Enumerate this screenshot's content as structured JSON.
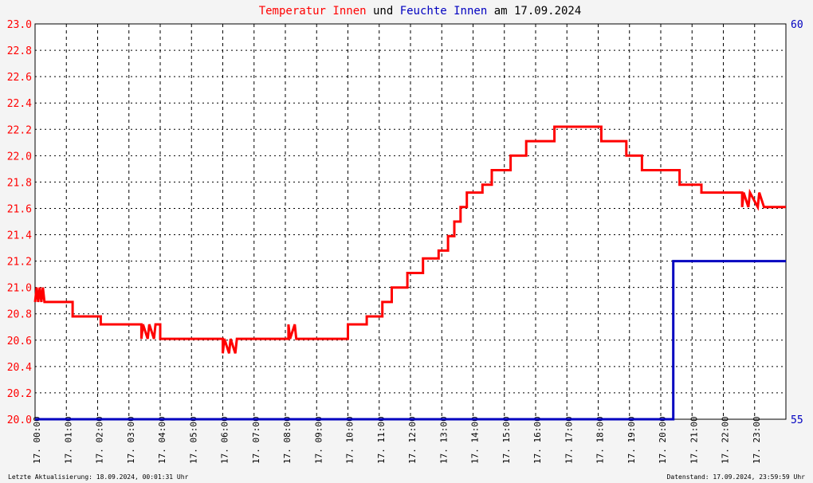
{
  "title": {
    "part1": "Temperatur Innen",
    "part2": " und ",
    "part3": "Feuchte Innen",
    "part4": " am 17.09.2024"
  },
  "footer": {
    "left": "Letzte Aktualisierung: 18.09.2024, 00:01:31 Uhr",
    "right": "Datenstand: 17.09.2024, 23:59:59 Uhr"
  },
  "colors": {
    "temperature": "#ff0000",
    "humidity": "#0000c0",
    "title_dark": "#000000"
  },
  "chart_data": {
    "type": "line",
    "xlabel": "",
    "x_ticks": [
      "17. 00:00",
      "17. 01:00",
      "17. 02:00",
      "17. 03:00",
      "17. 04:00",
      "17. 05:00",
      "17. 06:00",
      "17. 07:00",
      "17. 08:00",
      "17. 09:00",
      "17. 10:00",
      "17. 11:00",
      "17. 12:00",
      "17. 13:00",
      "17. 14:00",
      "17. 15:00",
      "17. 16:00",
      "17. 17:00",
      "17. 18:00",
      "17. 19:00",
      "17. 20:00",
      "17. 21:00",
      "17. 22:00",
      "17. 23:00"
    ],
    "xlim": [
      0,
      24
    ],
    "ylim_left": [
      20.0,
      23.0
    ],
    "y_ticks_left": [
      "20.0",
      "20.2",
      "20.4",
      "20.6",
      "20.8",
      "21.0",
      "21.2",
      "21.4",
      "21.6",
      "21.8",
      "22.0",
      "22.2",
      "22.4",
      "22.6",
      "22.8",
      "23.0"
    ],
    "ylim_right": [
      55,
      60
    ],
    "y_ticks_right": [
      "55",
      "60"
    ],
    "grid": true,
    "series": [
      {
        "name": "Temperatur Innen",
        "axis": "left",
        "points": [
          [
            0,
            20.89
          ],
          [
            0.05,
            21.0
          ],
          [
            0.1,
            20.89
          ],
          [
            0.15,
            21.0
          ],
          [
            0.2,
            20.89
          ],
          [
            0.25,
            21.0
          ],
          [
            0.3,
            20.89
          ],
          [
            1.2,
            20.89
          ],
          [
            1.2,
            20.78
          ],
          [
            2.1,
            20.78
          ],
          [
            2.1,
            20.72
          ],
          [
            3.4,
            20.72
          ],
          [
            3.4,
            20.61
          ],
          [
            3.45,
            20.72
          ],
          [
            3.6,
            20.61
          ],
          [
            3.65,
            20.72
          ],
          [
            3.8,
            20.61
          ],
          [
            3.85,
            20.72
          ],
          [
            4.0,
            20.72
          ],
          [
            4.0,
            20.61
          ],
          [
            6.0,
            20.61
          ],
          [
            6.0,
            20.5
          ],
          [
            6.05,
            20.61
          ],
          [
            6.2,
            20.5
          ],
          [
            6.25,
            20.61
          ],
          [
            6.4,
            20.5
          ],
          [
            6.45,
            20.61
          ],
          [
            8.1,
            20.61
          ],
          [
            8.1,
            20.72
          ],
          [
            8.15,
            20.61
          ],
          [
            8.3,
            20.72
          ],
          [
            8.35,
            20.61
          ],
          [
            10.0,
            20.61
          ],
          [
            10.0,
            20.72
          ],
          [
            10.6,
            20.72
          ],
          [
            10.6,
            20.78
          ],
          [
            11.1,
            20.78
          ],
          [
            11.1,
            20.89
          ],
          [
            11.4,
            20.89
          ],
          [
            11.4,
            21.0
          ],
          [
            11.9,
            21.0
          ],
          [
            11.9,
            21.11
          ],
          [
            12.4,
            21.11
          ],
          [
            12.4,
            21.22
          ],
          [
            12.9,
            21.22
          ],
          [
            12.9,
            21.28
          ],
          [
            13.2,
            21.28
          ],
          [
            13.2,
            21.39
          ],
          [
            13.4,
            21.39
          ],
          [
            13.4,
            21.5
          ],
          [
            13.6,
            21.5
          ],
          [
            13.6,
            21.61
          ],
          [
            13.8,
            21.61
          ],
          [
            13.8,
            21.72
          ],
          [
            14.3,
            21.72
          ],
          [
            14.3,
            21.78
          ],
          [
            14.6,
            21.78
          ],
          [
            14.6,
            21.89
          ],
          [
            15.2,
            21.89
          ],
          [
            15.2,
            22.0
          ],
          [
            15.7,
            22.0
          ],
          [
            15.7,
            22.11
          ],
          [
            16.6,
            22.11
          ],
          [
            16.6,
            22.22
          ],
          [
            18.1,
            22.22
          ],
          [
            18.1,
            22.11
          ],
          [
            18.9,
            22.11
          ],
          [
            18.9,
            22.0
          ],
          [
            19.4,
            22.0
          ],
          [
            19.4,
            21.89
          ],
          [
            20.6,
            21.89
          ],
          [
            20.6,
            21.78
          ],
          [
            21.3,
            21.78
          ],
          [
            21.3,
            21.72
          ],
          [
            22.6,
            21.72
          ],
          [
            22.6,
            21.61
          ],
          [
            22.65,
            21.72
          ],
          [
            22.8,
            21.61
          ],
          [
            22.85,
            21.72
          ],
          [
            23.1,
            21.61
          ],
          [
            23.15,
            21.72
          ],
          [
            23.3,
            21.61
          ],
          [
            24.0,
            21.61
          ]
        ]
      },
      {
        "name": "Feuchte Innen",
        "axis": "right",
        "points": [
          [
            0,
            55
          ],
          [
            20.4,
            55
          ],
          [
            20.4,
            57
          ],
          [
            24,
            57
          ]
        ]
      }
    ]
  }
}
